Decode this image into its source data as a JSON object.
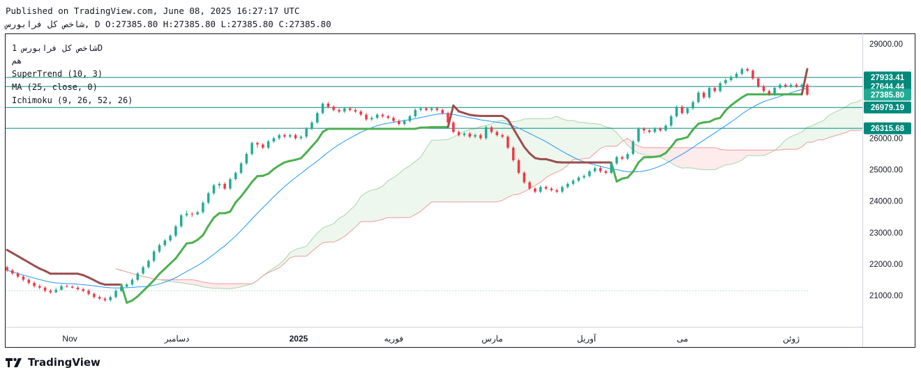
{
  "header": {
    "published": "Published on TradingView.com, June 08, 2025 16:27:17 UTC",
    "symbol_line": "شاخص کل فرابورس, D O:27385.80 H:27385.80 L:27385.80 C:27385.80"
  },
  "legend": {
    "title": "شاخص کل فرابورس 1D",
    "subtitle": "هم",
    "indicators": [
      "SuperTrend (10, 3)",
      "MA (25, close, 0)",
      "Ichimoku (9, 26, 52, 26)"
    ]
  },
  "brand": {
    "name": "TradingView",
    "icon": "tradingview-logo-icon"
  },
  "colors": {
    "up": "#22ab94",
    "down": "#f23645",
    "supertrend_up": "#4caf50",
    "supertrend_down": "#9b4d4d",
    "ma": "#2196f3",
    "cloud_up": "#a5d6a7",
    "cloud_down": "#ef9a9a",
    "hline": "#00897b"
  },
  "chart_data": {
    "type": "candlestick",
    "y_axis": {
      "ticks": [
        21000,
        22000,
        23000,
        24000,
        25000,
        26000,
        27000,
        28000,
        29000
      ],
      "tick_labels": [
        "21000.00",
        "22000.00",
        "23000.00",
        "24000.00",
        "25000.00",
        "26000.00",
        "27000.00",
        "28000.00",
        "29000.00"
      ],
      "range": [
        20000,
        29400
      ]
    },
    "x_axis": {
      "labels": [
        "Nov",
        "دسامبر",
        "2025",
        "فوریه",
        "مارس",
        "آوریل",
        "می",
        "ژوئن"
      ]
    },
    "price_labels": [
      {
        "value": 27933.41,
        "text": "27933.41",
        "color": "#00897b"
      },
      {
        "value": 27644.44,
        "text": "27644.44",
        "color": "#00897b"
      },
      {
        "value": 27385.8,
        "text": "27385.80",
        "color": "#22ab94"
      },
      {
        "value": 26979.19,
        "text": "26979.19",
        "color": "#00897b"
      },
      {
        "value": 26315.68,
        "text": "26315.68",
        "color": "#00897b"
      }
    ],
    "horizontal_lines": [
      27933.41,
      27644.44,
      26979.19,
      26315.68
    ],
    "close_line": 21150,
    "candles": [
      [
        21900,
        21800,
        21950,
        21750
      ],
      [
        21800,
        21700,
        21850,
        21650
      ],
      [
        21700,
        21600,
        21750,
        21550
      ],
      [
        21600,
        21500,
        21650,
        21450
      ],
      [
        21500,
        21400,
        21550,
        21350
      ],
      [
        21400,
        21300,
        21450,
        21250
      ],
      [
        21300,
        21250,
        21350,
        21200
      ],
      [
        21250,
        21150,
        21300,
        21100
      ],
      [
        21150,
        21100,
        21200,
        21050
      ],
      [
        21100,
        21180,
        21250,
        21080
      ],
      [
        21180,
        21300,
        21350,
        21150
      ],
      [
        21300,
        21280,
        21350,
        21250
      ],
      [
        21280,
        21250,
        21320,
        21220
      ],
      [
        21250,
        21200,
        21300,
        21150
      ],
      [
        21200,
        21150,
        21250,
        21100
      ],
      [
        21150,
        21050,
        21200,
        21000
      ],
      [
        21050,
        20950,
        21100,
        20900
      ],
      [
        20950,
        20900,
        21000,
        20850
      ],
      [
        20900,
        20850,
        20950,
        20800
      ],
      [
        20850,
        20950,
        21000,
        20800
      ],
      [
        20950,
        21150,
        21200,
        20900
      ],
      [
        21150,
        21280,
        21300,
        21100
      ],
      [
        21280,
        21350,
        21400,
        21250
      ],
      [
        21350,
        21500,
        21550,
        21300
      ],
      [
        21500,
        21700,
        21750,
        21450
      ],
      [
        21700,
        21900,
        21950,
        21650
      ],
      [
        21900,
        22100,
        22150,
        21850
      ],
      [
        22100,
        22400,
        22450,
        22050
      ],
      [
        22400,
        22600,
        22650,
        22350
      ],
      [
        22600,
        22750,
        22800,
        22550
      ],
      [
        22750,
        22900,
        22950,
        22700
      ],
      [
        22900,
        23200,
        23250,
        22850
      ],
      [
        23200,
        23550,
        23600,
        23150
      ],
      [
        23550,
        23600,
        23700,
        23500
      ],
      [
        23600,
        23580,
        23650,
        23500
      ],
      [
        23580,
        23650,
        23700,
        23550
      ],
      [
        23650,
        23950,
        24000,
        23600
      ],
      [
        23950,
        24250,
        24300,
        23900
      ],
      [
        24250,
        24500,
        24550,
        24200
      ],
      [
        24500,
        24550,
        24600,
        24400
      ],
      [
        24550,
        24400,
        24600,
        24350
      ],
      [
        24400,
        24700,
        24750,
        24350
      ],
      [
        24700,
        24900,
        24950,
        24650
      ],
      [
        24900,
        25200,
        25250,
        24850
      ],
      [
        25200,
        25500,
        25550,
        25150
      ],
      [
        25500,
        25850,
        25900,
        25450
      ],
      [
        25850,
        25800,
        25900,
        25700
      ],
      [
        25800,
        25700,
        25850,
        25650
      ],
      [
        25700,
        25900,
        25950,
        25650
      ],
      [
        25900,
        26000,
        26050,
        25850
      ],
      [
        26000,
        26100,
        26150,
        25950
      ],
      [
        26100,
        26050,
        26150,
        26000
      ],
      [
        26050,
        26100,
        26150,
        26000
      ],
      [
        26100,
        26000,
        26150,
        25950
      ],
      [
        26000,
        26050,
        26100,
        25950
      ],
      [
        26050,
        26300,
        26350,
        26000
      ],
      [
        26300,
        26500,
        26550,
        26250
      ],
      [
        26500,
        26800,
        26850,
        26450
      ],
      [
        26800,
        27100,
        27150,
        26750
      ],
      [
        27100,
        27000,
        27150,
        26950
      ],
      [
        27000,
        26900,
        27050,
        26850
      ],
      [
        26900,
        26850,
        26950,
        26800
      ],
      [
        26850,
        26950,
        27000,
        26800
      ],
      [
        26950,
        26900,
        27000,
        26850
      ],
      [
        26900,
        26850,
        26950,
        26800
      ],
      [
        26850,
        26750,
        26900,
        26700
      ],
      [
        26750,
        26600,
        26800,
        26550
      ],
      [
        26600,
        26650,
        26700,
        26550
      ],
      [
        26650,
        26750,
        26800,
        26600
      ],
      [
        26750,
        26700,
        26800,
        26650
      ],
      [
        26700,
        26650,
        26750,
        26600
      ],
      [
        26650,
        26550,
        26700,
        26500
      ],
      [
        26550,
        26450,
        26600,
        26400
      ],
      [
        26450,
        26550,
        26600,
        26400
      ],
      [
        26550,
        26700,
        26750,
        26500
      ],
      [
        26700,
        26900,
        26950,
        26650
      ],
      [
        26900,
        26950,
        27000,
        26850
      ],
      [
        26950,
        26900,
        27000,
        26850
      ],
      [
        26900,
        26950,
        27000,
        26850
      ],
      [
        26950,
        26900,
        27000,
        26850
      ],
      [
        26900,
        26800,
        26950,
        26750
      ],
      [
        26800,
        26500,
        26850,
        26450
      ],
      [
        26500,
        26200,
        26550,
        26150
      ],
      [
        26200,
        26100,
        26250,
        26050
      ],
      [
        26100,
        26150,
        26200,
        26050
      ],
      [
        26150,
        26050,
        26200,
        26000
      ],
      [
        26050,
        26100,
        26150,
        26000
      ],
      [
        26100,
        26000,
        26150,
        25950
      ],
      [
        26000,
        26350,
        26400,
        25950
      ],
      [
        26350,
        26200,
        26400,
        26150
      ],
      [
        26200,
        26100,
        26250,
        26050
      ],
      [
        26100,
        26050,
        26150,
        26000
      ],
      [
        26050,
        25700,
        26100,
        25650
      ],
      [
        25700,
        25300,
        25750,
        25250
      ],
      [
        25300,
        24900,
        25350,
        24850
      ],
      [
        24900,
        24600,
        24950,
        24550
      ],
      [
        24600,
        24400,
        24650,
        24350
      ],
      [
        24400,
        24300,
        24450,
        24250
      ],
      [
        24300,
        24450,
        24500,
        24250
      ],
      [
        24450,
        24400,
        24500,
        24350
      ],
      [
        24400,
        24350,
        24450,
        24300
      ],
      [
        24350,
        24300,
        24400,
        24250
      ],
      [
        24300,
        24450,
        24500,
        24250
      ],
      [
        24450,
        24550,
        24600,
        24400
      ],
      [
        24550,
        24650,
        24700,
        24500
      ],
      [
        24650,
        24750,
        24800,
        24600
      ],
      [
        24750,
        24800,
        24850,
        24700
      ],
      [
        24800,
        24950,
        25000,
        24750
      ],
      [
        24950,
        25050,
        25100,
        24900
      ],
      [
        25050,
        24950,
        25100,
        24900
      ],
      [
        24950,
        24900,
        25000,
        24850
      ],
      [
        24900,
        25200,
        25250,
        24850
      ],
      [
        25200,
        25400,
        25450,
        25150
      ],
      [
        25400,
        25350,
        25450,
        25300
      ],
      [
        25350,
        25500,
        25550,
        25300
      ],
      [
        25500,
        25900,
        25950,
        25450
      ],
      [
        25900,
        26300,
        26350,
        25850
      ],
      [
        26300,
        26250,
        26350,
        26150
      ],
      [
        26250,
        26200,
        26300,
        26150
      ],
      [
        26200,
        26300,
        26350,
        26150
      ],
      [
        26300,
        26250,
        26350,
        26200
      ],
      [
        26250,
        26400,
        26450,
        26200
      ],
      [
        26400,
        26700,
        26750,
        26350
      ],
      [
        26700,
        27000,
        27050,
        26650
      ],
      [
        27000,
        26800,
        27050,
        26750
      ],
      [
        26800,
        26950,
        27000,
        26750
      ],
      [
        26950,
        27150,
        27200,
        26900
      ],
      [
        27150,
        27450,
        27500,
        27100
      ],
      [
        27450,
        27300,
        27500,
        27250
      ],
      [
        27300,
        27600,
        27650,
        27250
      ],
      [
        27600,
        27500,
        27650,
        27450
      ],
      [
        27500,
        27750,
        27800,
        27450
      ],
      [
        27750,
        27850,
        27900,
        27700
      ],
      [
        27850,
        27950,
        28000,
        27800
      ],
      [
        27950,
        28050,
        28100,
        27900
      ],
      [
        28050,
        28200,
        28250,
        28000
      ],
      [
        28200,
        28150,
        28250,
        28100
      ],
      [
        28150,
        27900,
        28200,
        27850
      ],
      [
        27900,
        27650,
        27950,
        27600
      ],
      [
        27650,
        27500,
        27700,
        27450
      ],
      [
        27500,
        27400,
        27550,
        27350
      ],
      [
        27400,
        27600,
        27650,
        27350
      ],
      [
        27600,
        27700,
        27750,
        27550
      ],
      [
        27700,
        27650,
        27750,
        27600
      ],
      [
        27650,
        27700,
        27750,
        27600
      ],
      [
        27700,
        27650,
        27750,
        27600
      ],
      [
        27650,
        27700,
        27750,
        27600
      ],
      [
        27700,
        27385.8,
        27750,
        27350
      ]
    ]
  }
}
